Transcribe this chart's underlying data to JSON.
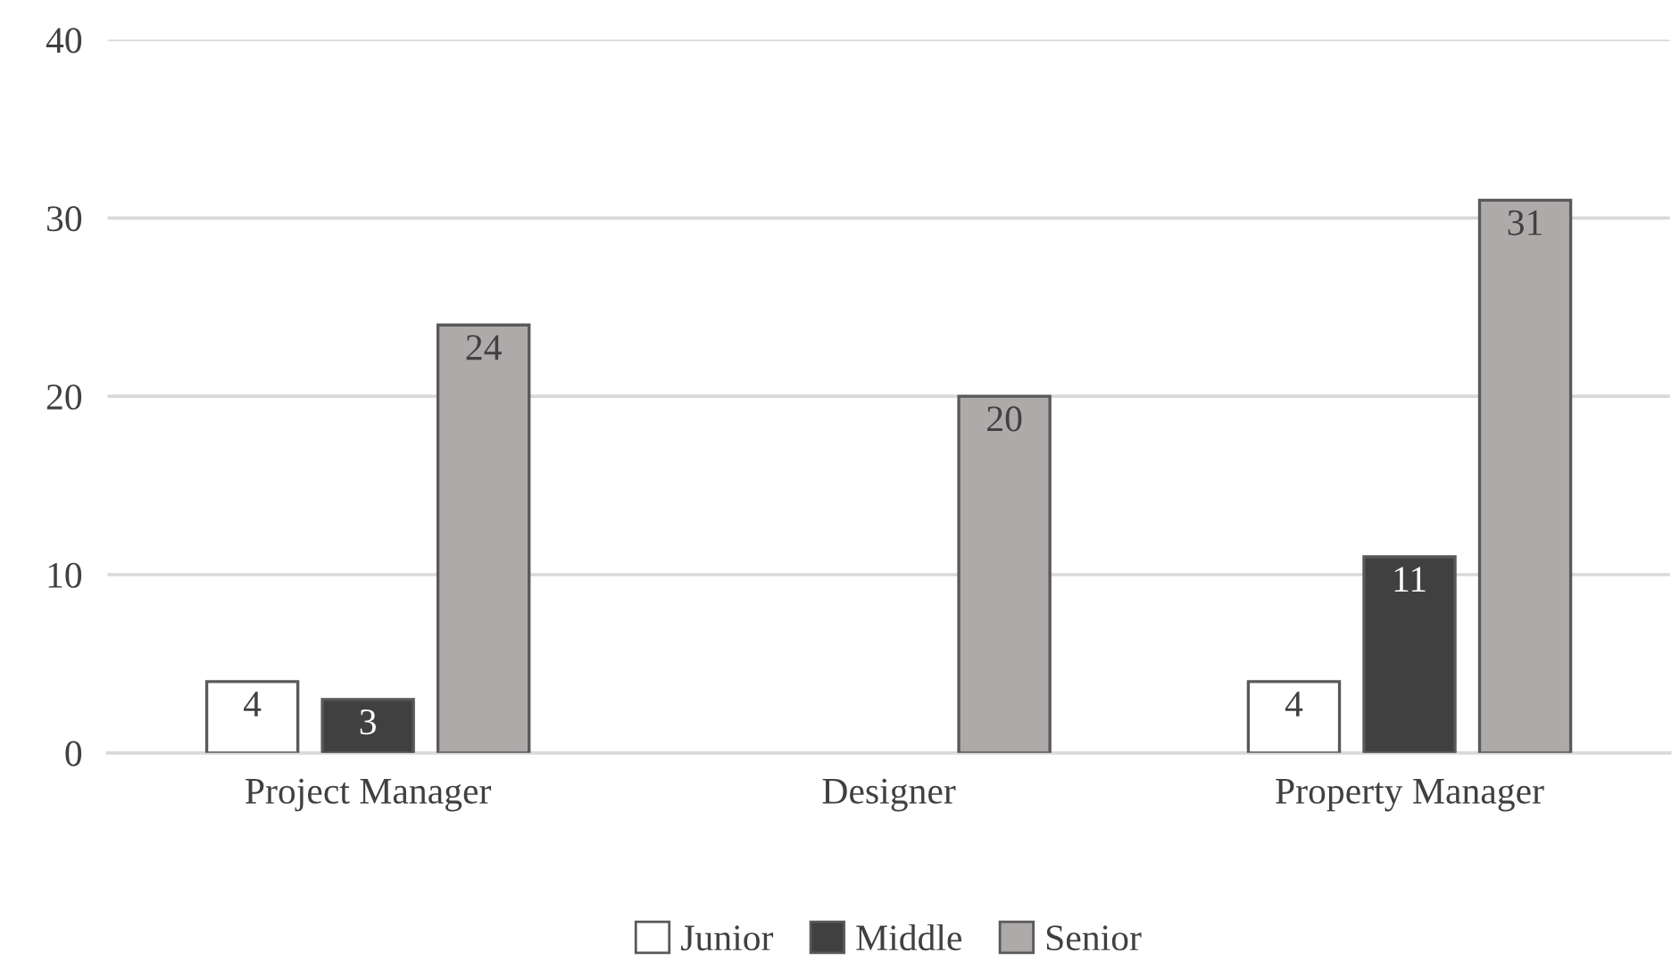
{
  "chart_data": {
    "type": "bar",
    "categories": [
      "Project Manager",
      "Designer",
      "Property Manager"
    ],
    "series": [
      {
        "name": "Junior",
        "color": "#ffffff",
        "values": [
          4,
          null,
          4
        ]
      },
      {
        "name": "Middle",
        "color": "#404040",
        "values": [
          3,
          null,
          11
        ]
      },
      {
        "name": "Senior",
        "color": "#aeaaaa",
        "values": [
          24,
          20,
          31
        ]
      }
    ],
    "ylim": [
      0,
      40
    ],
    "yticks": [
      0,
      10,
      20,
      30,
      40
    ],
    "grid": "y",
    "legend": "bottom",
    "data_labels": true
  }
}
